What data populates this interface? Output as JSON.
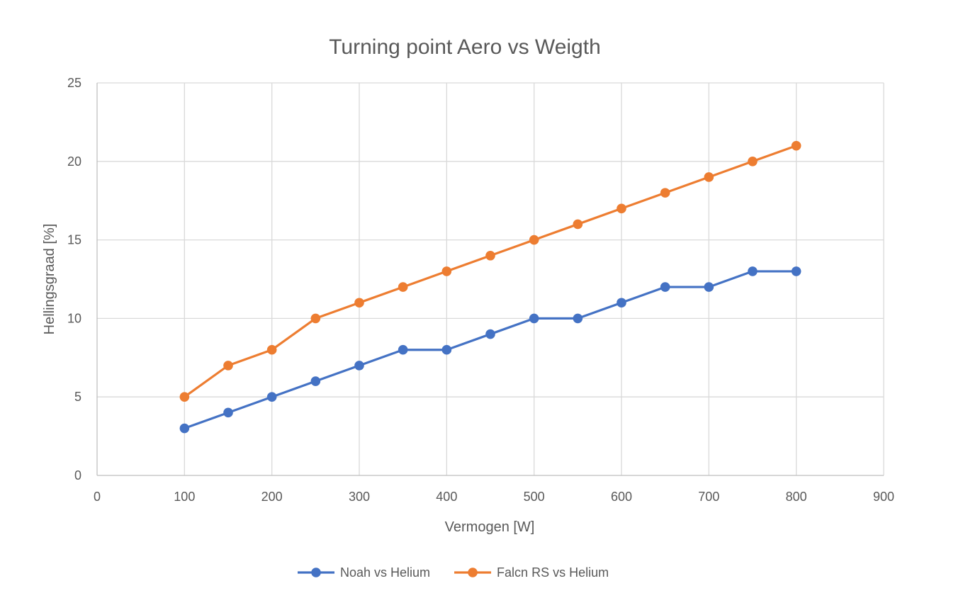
{
  "chart_data": {
    "type": "line",
    "title": "Turning point Aero vs Weigth",
    "xlabel": "Vermogen [W]",
    "ylabel": "Hellingsgraad [%]",
    "xlim": [
      0,
      900
    ],
    "ylim": [
      0,
      25
    ],
    "x_ticks": [
      0,
      100,
      200,
      300,
      400,
      500,
      600,
      700,
      800,
      900
    ],
    "y_ticks": [
      0,
      5,
      10,
      15,
      20,
      25
    ],
    "grid": "both",
    "legend_position": "bottom",
    "x": [
      100,
      150,
      200,
      250,
      300,
      350,
      400,
      450,
      500,
      550,
      600,
      650,
      700,
      750,
      800
    ],
    "series": [
      {
        "name": "Noah vs Helium",
        "color": "#4472c4",
        "values": [
          3,
          4,
          5,
          6,
          7,
          8,
          8,
          9,
          10,
          10,
          11,
          12,
          12,
          13,
          13
        ]
      },
      {
        "name": "Falcn RS vs Helium",
        "color": "#ed7d31",
        "values": [
          5,
          7,
          8,
          10,
          11,
          12,
          13,
          14,
          15,
          16,
          17,
          18,
          19,
          20,
          21
        ]
      }
    ]
  }
}
